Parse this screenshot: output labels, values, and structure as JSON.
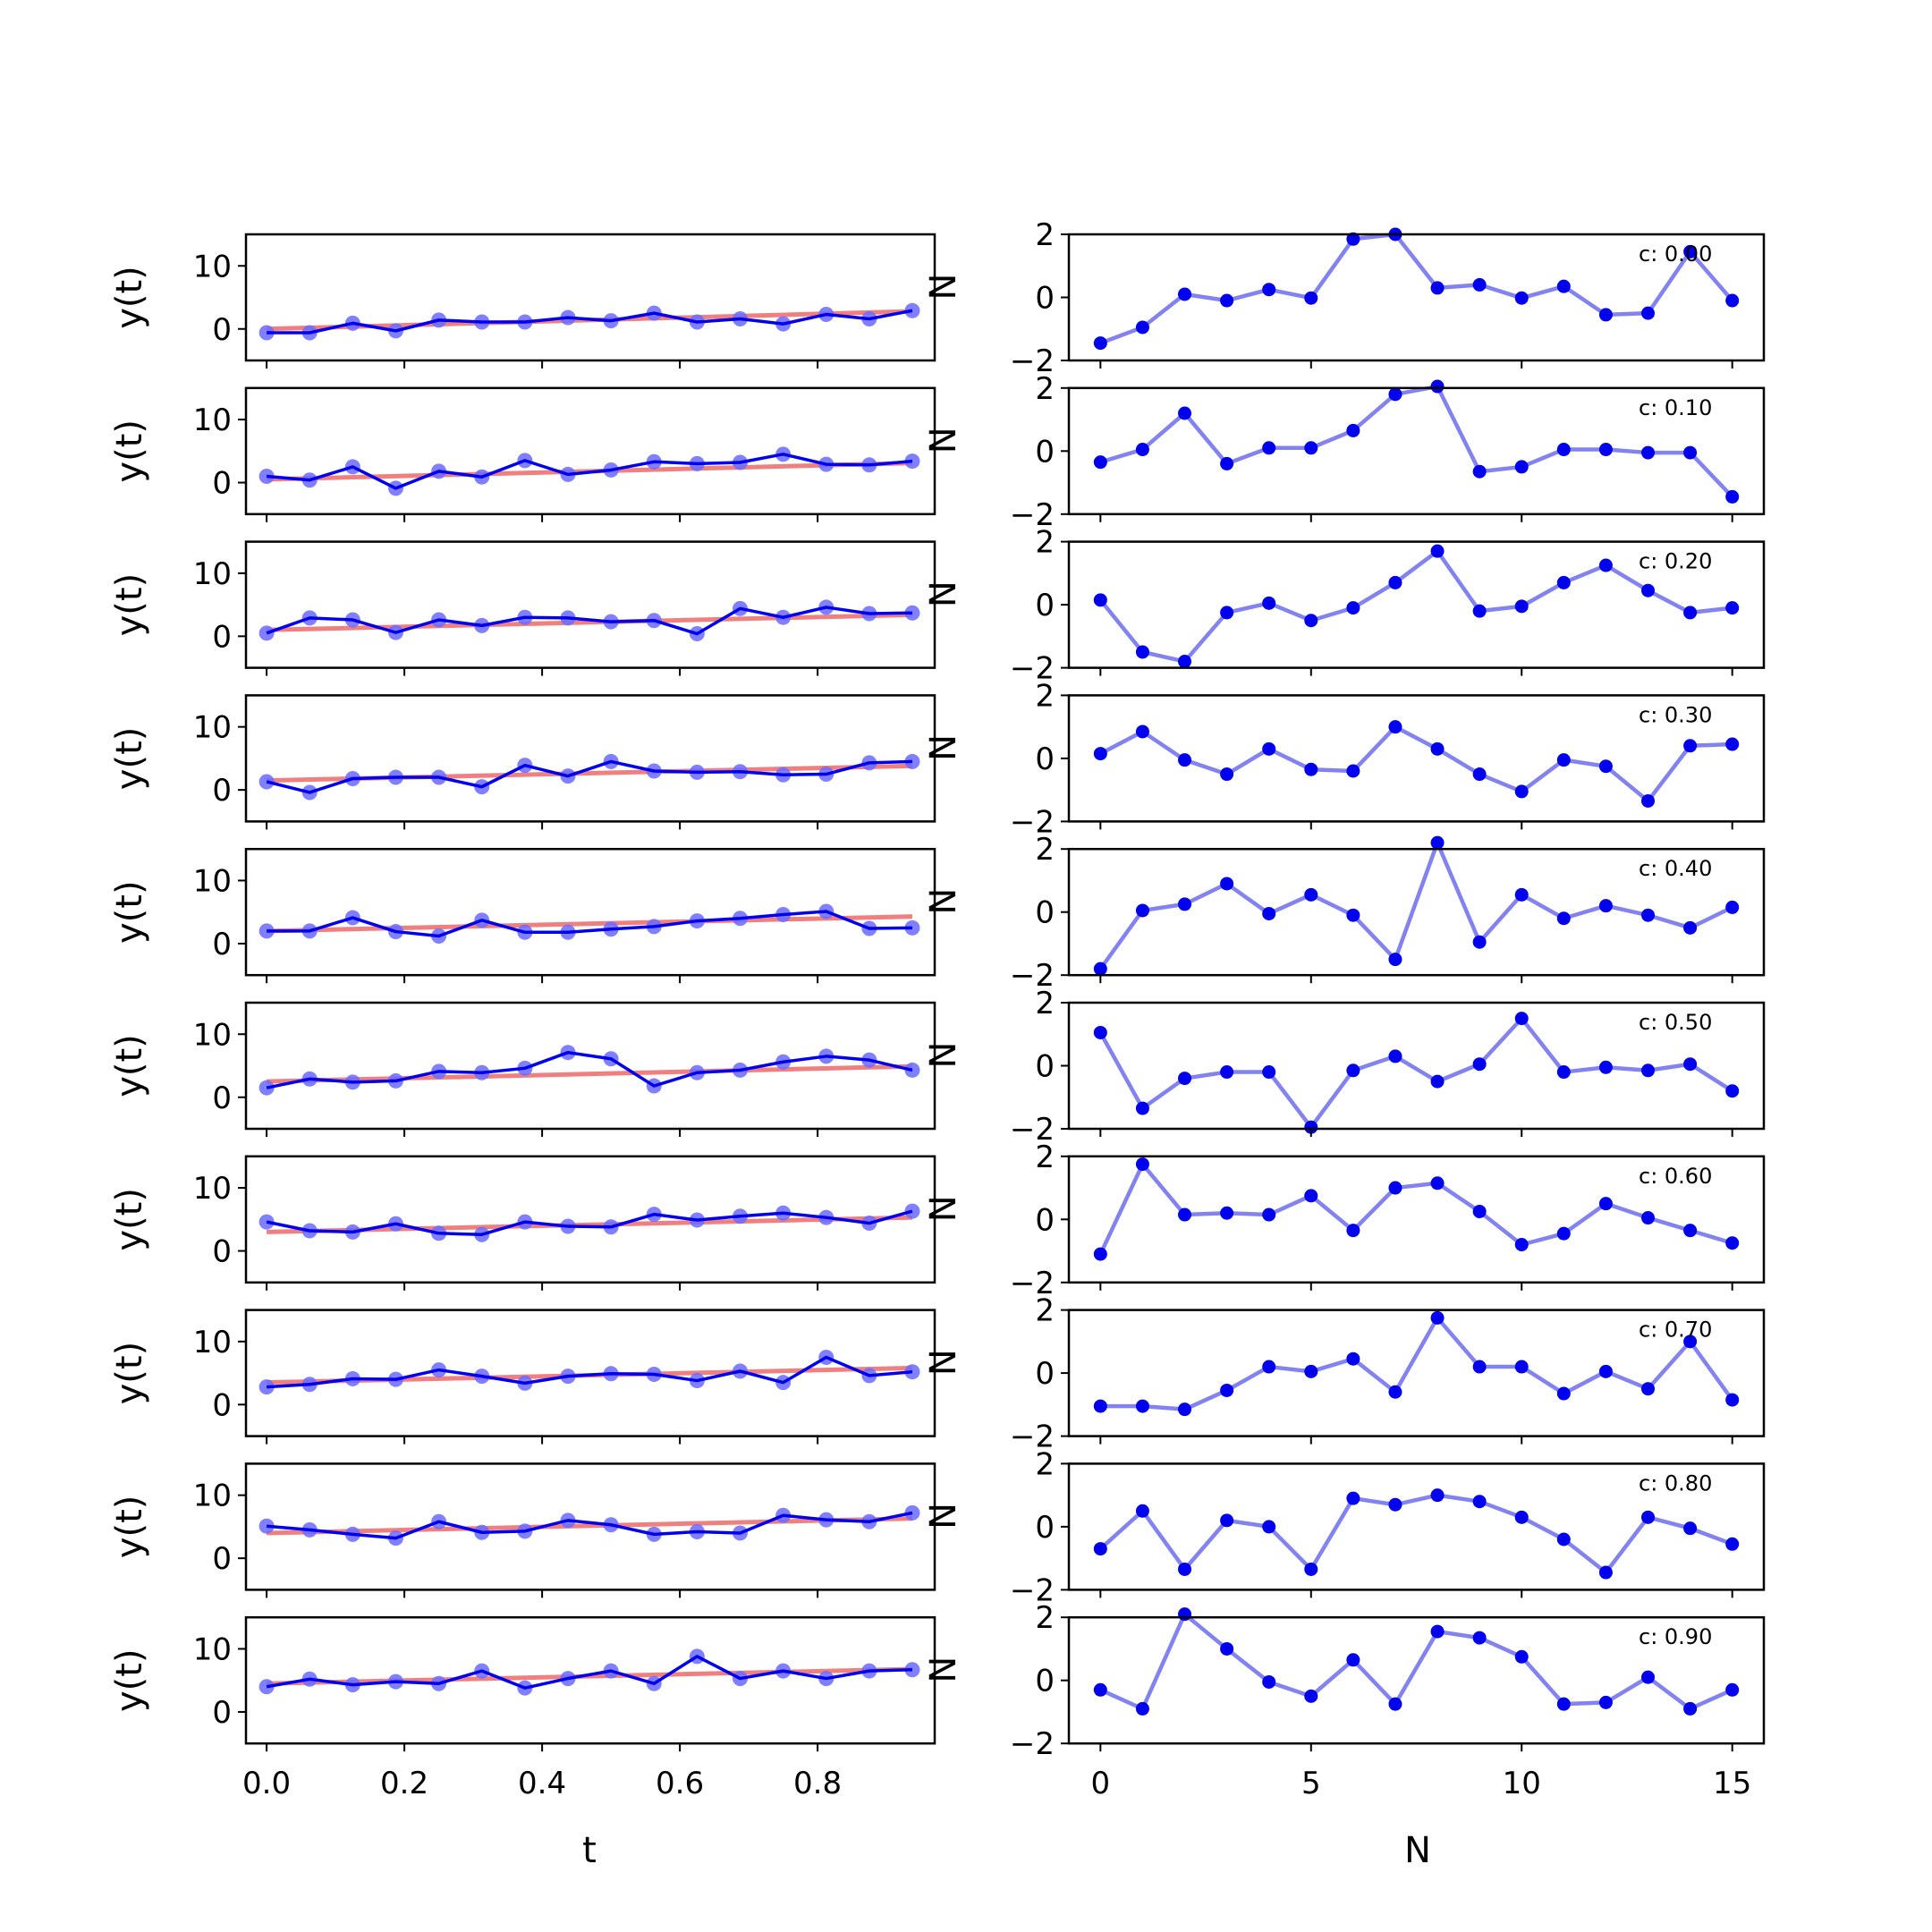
{
  "figure": {
    "background": "#ffffff"
  },
  "colors": {
    "fit_line": "#f08080",
    "data_line": "#0000ee",
    "data_marker": "#6a6aff",
    "residual_line": "#7b7bf0",
    "residual_marker": "#0000ee"
  },
  "chart_data": [
    {
      "type": "line",
      "layout": "grid-10x2",
      "left_column": {
        "xlabel": "t",
        "ylabel": "y(t)",
        "xlim": [
          -0.03,
          0.97
        ],
        "ylim": [
          -5,
          15
        ],
        "xticks": [
          0.0,
          0.2,
          0.4,
          0.6,
          0.8
        ],
        "xtick_labels": [
          "0.0",
          "0.2",
          "0.4",
          "0.6",
          "0.8"
        ],
        "yticks": [
          0,
          10
        ],
        "ytick_labels": [
          "0",
          "10"
        ],
        "x": [
          0.0,
          0.0625,
          0.125,
          0.1875,
          0.25,
          0.3125,
          0.375,
          0.4375,
          0.5,
          0.5625,
          0.625,
          0.6875,
          0.75,
          0.8125,
          0.875,
          0.9375
        ]
      },
      "right_column": {
        "xlabel": "N",
        "ylabel": "N",
        "xlim": [
          -0.75,
          15.75
        ],
        "ylim": [
          -2,
          2
        ],
        "xticks": [
          0,
          5,
          10,
          15
        ],
        "xtick_labels": [
          "0",
          "5",
          "10",
          "15"
        ],
        "yticks": [
          -2,
          0,
          2
        ],
        "ytick_labels": [
          "−2",
          "0",
          "2"
        ],
        "x": [
          0,
          1,
          2,
          3,
          4,
          5,
          6,
          7,
          8,
          9,
          10,
          11,
          12,
          13,
          14,
          15
        ]
      },
      "rows": [
        {
          "annotation": "c: 0.00",
          "fit": [
            0.0,
            2.8
          ],
          "y": [
            -0.6,
            -0.6,
            0.9,
            -0.3,
            1.4,
            1.1,
            1.1,
            1.8,
            1.3,
            2.5,
            1.1,
            1.6,
            0.8,
            2.3,
            1.6,
            2.9
          ],
          "residuals": [
            -1.45,
            -0.95,
            0.1,
            -0.1,
            0.25,
            -0.02,
            1.85,
            2.0,
            0.3,
            0.4,
            -0.02,
            0.35,
            -0.55,
            -0.5,
            1.45,
            -0.1
          ]
        },
        {
          "annotation": "c: 0.10",
          "fit": [
            0.5,
            3.1
          ],
          "y": [
            1.0,
            0.4,
            2.5,
            -0.9,
            1.8,
            0.9,
            3.5,
            1.3,
            2.0,
            3.3,
            3.0,
            3.2,
            4.5,
            2.9,
            2.8,
            3.4
          ],
          "residuals": [
            -0.35,
            0.05,
            1.2,
            -0.4,
            0.1,
            0.1,
            0.65,
            1.8,
            2.05,
            -0.65,
            -0.5,
            0.05,
            0.05,
            -0.05,
            -0.05,
            -1.45
          ]
        },
        {
          "annotation": "c: 0.20",
          "fit": [
            1.0,
            3.4
          ],
          "y": [
            0.5,
            2.9,
            2.6,
            0.6,
            2.6,
            1.7,
            3.0,
            2.9,
            2.3,
            2.5,
            0.4,
            4.4,
            3.0,
            4.6,
            3.6,
            3.7
          ],
          "residuals": [
            0.15,
            -1.5,
            -1.8,
            -0.25,
            0.05,
            -0.5,
            -0.1,
            0.7,
            1.7,
            -0.2,
            -0.05,
            0.7,
            1.25,
            0.45,
            -0.25,
            -0.1
          ]
        },
        {
          "annotation": "c: 0.30",
          "fit": [
            1.5,
            3.8
          ],
          "y": [
            1.3,
            -0.4,
            1.8,
            2.0,
            2.0,
            0.5,
            3.9,
            2.2,
            4.5,
            3.0,
            2.8,
            2.9,
            2.4,
            2.5,
            4.3,
            4.5
          ],
          "residuals": [
            0.15,
            0.85,
            -0.05,
            -0.5,
            0.3,
            -0.35,
            -0.4,
            1.0,
            0.3,
            -0.5,
            -1.05,
            -0.05,
            -0.25,
            -1.35,
            0.4,
            0.45
          ]
        },
        {
          "annotation": "c: 0.40",
          "fit": [
            2.0,
            4.3
          ],
          "y": [
            2.0,
            2.0,
            4.1,
            1.9,
            1.2,
            3.7,
            1.8,
            1.8,
            2.3,
            2.7,
            3.6,
            4.0,
            4.6,
            5.1,
            2.4,
            2.5
          ],
          "residuals": [
            -1.8,
            0.05,
            0.25,
            0.9,
            -0.05,
            0.55,
            -0.1,
            -1.5,
            2.2,
            -0.95,
            0.55,
            -0.2,
            0.2,
            -0.1,
            -0.5,
            0.15
          ]
        },
        {
          "annotation": "c: 0.50",
          "fit": [
            2.5,
            4.9
          ],
          "y": [
            1.5,
            2.9,
            2.4,
            2.6,
            4.1,
            3.9,
            4.6,
            7.1,
            6.1,
            1.8,
            3.9,
            4.3,
            5.6,
            6.5,
            5.9,
            4.3
          ],
          "residuals": [
            1.05,
            -1.35,
            -0.4,
            -0.2,
            -0.2,
            -1.95,
            -0.15,
            0.3,
            -0.5,
            0.05,
            1.5,
            -0.2,
            -0.05,
            -0.15,
            0.05,
            -0.8
          ]
        },
        {
          "annotation": "c: 0.60",
          "fit": [
            3.0,
            5.3
          ],
          "y": [
            4.6,
            3.2,
            3.0,
            4.3,
            2.8,
            2.6,
            4.6,
            3.9,
            3.8,
            5.8,
            4.9,
            5.5,
            6.0,
            5.3,
            4.4,
            6.3
          ],
          "residuals": [
            -1.1,
            1.75,
            0.15,
            0.2,
            0.15,
            0.75,
            -0.35,
            1.0,
            1.15,
            0.25,
            -0.8,
            -0.45,
            0.5,
            0.05,
            -0.35,
            -0.75
          ]
        },
        {
          "annotation": "c: 0.70",
          "fit": [
            3.5,
            5.8
          ],
          "y": [
            2.8,
            3.2,
            4.1,
            4.0,
            5.5,
            4.5,
            3.4,
            4.5,
            4.9,
            4.8,
            3.8,
            5.3,
            3.5,
            7.5,
            4.6,
            5.2
          ],
          "residuals": [
            -1.05,
            -1.05,
            -1.15,
            -0.55,
            0.2,
            0.05,
            0.45,
            -0.6,
            1.75,
            0.2,
            0.2,
            -0.65,
            0.05,
            -0.5,
            1.0,
            -0.85
          ]
        },
        {
          "annotation": "c: 0.80",
          "fit": [
            4.0,
            6.3
          ],
          "y": [
            5.1,
            4.5,
            3.8,
            3.2,
            5.8,
            4.1,
            4.3,
            6.0,
            5.3,
            3.8,
            4.2,
            4.0,
            6.8,
            6.1,
            5.8,
            7.2
          ],
          "residuals": [
            -0.7,
            0.5,
            -1.35,
            0.2,
            0.0,
            -1.35,
            0.9,
            0.7,
            1.0,
            0.8,
            0.3,
            -0.4,
            -1.45,
            0.3,
            -0.05,
            -0.55
          ]
        },
        {
          "annotation": "c: 0.90",
          "fit": [
            4.5,
            6.8
          ],
          "y": [
            4.0,
            5.2,
            4.3,
            4.8,
            4.5,
            6.5,
            3.8,
            5.3,
            6.5,
            4.5,
            8.8,
            5.3,
            6.5,
            5.3,
            6.5,
            6.7
          ],
          "residuals": [
            -0.3,
            -0.9,
            2.1,
            1.0,
            -0.05,
            -0.5,
            0.65,
            -0.75,
            1.55,
            1.35,
            0.75,
            -0.75,
            -0.7,
            0.1,
            -0.9,
            -0.3
          ]
        }
      ]
    }
  ]
}
